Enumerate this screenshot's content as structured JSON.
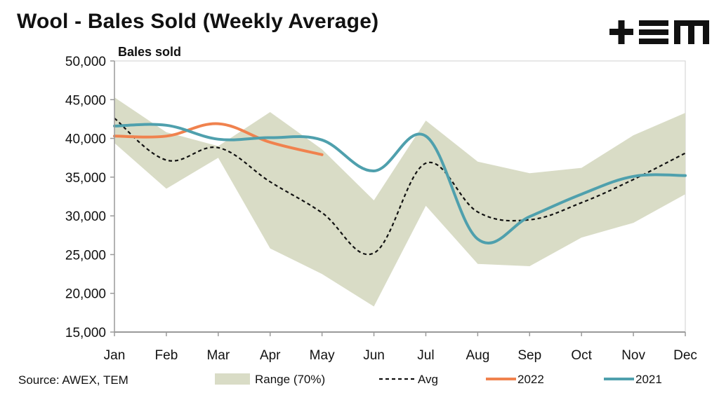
{
  "title": "Wool - Bales Sold (Weekly Average)",
  "logo_text": "TEM",
  "source": "Source: AWEX, TEM",
  "colors": {
    "range": "#d9dcc6",
    "avg": "#111111",
    "y2022": "#f0824e",
    "y2021": "#4fa0ad",
    "axis": "#9a9a9a"
  },
  "chart_data": {
    "type": "line",
    "title": "Wool - Bales Sold (Weekly Average)",
    "xlabel": "",
    "ylabel": "Bales sold",
    "ylim": [
      15000,
      50000
    ],
    "yticks": [
      15000,
      20000,
      25000,
      30000,
      35000,
      40000,
      45000,
      50000
    ],
    "ytick_labels": [
      "15,000",
      "20,000",
      "25,000",
      "30,000",
      "35,000",
      "40,000",
      "45,000",
      "50,000"
    ],
    "categories": [
      "Jan",
      "Feb",
      "Mar",
      "Apr",
      "May",
      "Jun",
      "Jul",
      "Aug",
      "Sep",
      "Oct",
      "Nov",
      "Dec"
    ],
    "grid": false,
    "legend_position": "bottom",
    "range": {
      "name": "Range (70%)",
      "upper": [
        45300,
        40800,
        39000,
        43400,
        38600,
        32000,
        42300,
        37000,
        35500,
        36200,
        40400,
        43300
      ],
      "lower": [
        39400,
        33500,
        37500,
        25800,
        22500,
        18300,
        31300,
        23800,
        23500,
        27200,
        29100,
        32800
      ]
    },
    "series": [
      {
        "name": "Avg",
        "style": "dashed",
        "values": [
          42600,
          37200,
          38800,
          34400,
          30400,
          25200,
          36800,
          30500,
          29500,
          31700,
          34700,
          38100
        ]
      },
      {
        "name": "2022",
        "style": "solid",
        "values": [
          40300,
          40300,
          41900,
          39500,
          37900,
          null,
          null,
          null,
          null,
          null,
          null,
          null
        ]
      },
      {
        "name": "2021",
        "style": "solid",
        "values": [
          41600,
          41700,
          39900,
          40100,
          39800,
          35800,
          40300,
          27000,
          29900,
          32800,
          35100,
          35200
        ]
      }
    ]
  }
}
